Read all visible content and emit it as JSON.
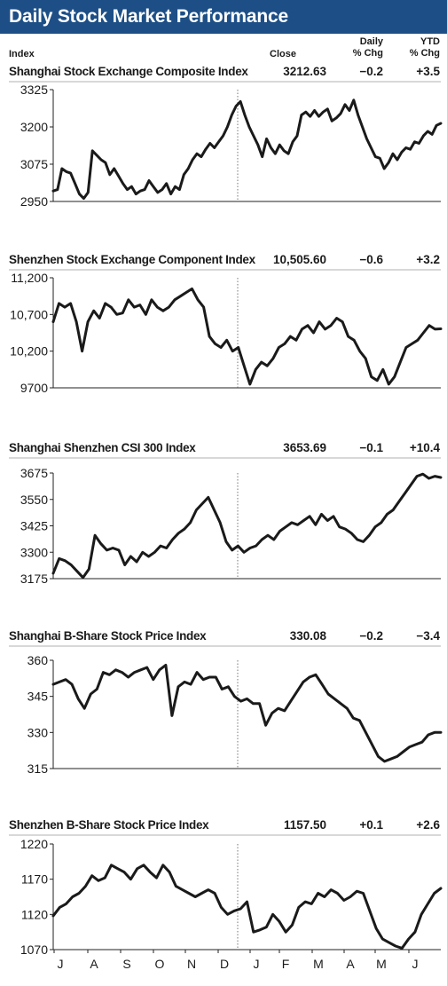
{
  "header": {
    "title": "Daily Stock Market Performance"
  },
  "columns": {
    "index": "Index",
    "close": "Close",
    "daily_line1": "Daily",
    "daily_line2": "% Chg",
    "ytd_line1": "YTD",
    "ytd_line2": "% Chg"
  },
  "months": [
    "J",
    "A",
    "S",
    "O",
    "N",
    "D",
    "J",
    "F",
    "M",
    "A",
    "M",
    "J"
  ],
  "colors": {
    "header": "#1d4f86",
    "line": "#1a1a1a",
    "axis": "#222222",
    "divider": "#555555"
  },
  "chart_data": [
    {
      "type": "line",
      "name": "Shanghai Stock Exchange Composite Index",
      "close": "3212.63",
      "daily": "−0.2",
      "ytd": "+3.5",
      "ylim": [
        2950,
        3325
      ],
      "yticks": [
        "3325",
        "3200",
        "3075",
        "2950"
      ],
      "values": [
        2985,
        2990,
        3060,
        3050,
        3045,
        3010,
        2975,
        2960,
        2980,
        3120,
        3105,
        3090,
        3080,
        3040,
        3060,
        3035,
        3010,
        2990,
        3000,
        2975,
        2985,
        2990,
        3020,
        3000,
        2980,
        2990,
        3010,
        2975,
        3000,
        2990,
        3040,
        3060,
        3090,
        3110,
        3100,
        3125,
        3145,
        3130,
        3150,
        3170,
        3200,
        3240,
        3270,
        3285,
        3240,
        3200,
        3170,
        3140,
        3100,
        3160,
        3130,
        3110,
        3140,
        3120,
        3110,
        3150,
        3170,
        3240,
        3250,
        3235,
        3255,
        3235,
        3250,
        3260,
        3220,
        3230,
        3245,
        3275,
        3255,
        3290,
        3240,
        3200,
        3160,
        3130,
        3100,
        3095,
        3060,
        3080,
        3110,
        3090,
        3115,
        3130,
        3125,
        3150,
        3145,
        3170,
        3185,
        3175,
        3205,
        3212
      ]
    },
    {
      "type": "line",
      "name": "Shenzhen Stock Exchange Component Index",
      "close": "10,505.60",
      "daily": "−0.6",
      "ytd": "+3.2",
      "ylim": [
        9700,
        11200
      ],
      "yticks": [
        "11,200",
        "10,700",
        "10,200",
        "9700"
      ],
      "values": [
        10600,
        10850,
        10800,
        10850,
        10600,
        10200,
        10600,
        10750,
        10650,
        10850,
        10800,
        10700,
        10720,
        10900,
        10800,
        10830,
        10700,
        10900,
        10800,
        10750,
        10800,
        10900,
        10950,
        11000,
        11050,
        10900,
        10800,
        10400,
        10300,
        10250,
        10350,
        10200,
        10250,
        10000,
        9750,
        9950,
        10050,
        10000,
        10100,
        10250,
        10300,
        10400,
        10350,
        10500,
        10550,
        10450,
        10600,
        10500,
        10550,
        10650,
        10600,
        10400,
        10350,
        10200,
        10100,
        9850,
        9800,
        9950,
        9750,
        9850,
        10050,
        10250,
        10300,
        10350,
        10450,
        10550,
        10500,
        10505
      ]
    },
    {
      "type": "line",
      "name": "Shanghai Shenzhen CSI 300 Index",
      "close": "3653.69",
      "daily": "−0.1",
      "ytd": "+10.4",
      "ylim": [
        3175,
        3675
      ],
      "yticks": [
        "3675",
        "3550",
        "3425",
        "3300",
        "3175"
      ],
      "values": [
        3200,
        3270,
        3260,
        3240,
        3210,
        3180,
        3220,
        3380,
        3340,
        3310,
        3320,
        3310,
        3240,
        3280,
        3255,
        3300,
        3280,
        3300,
        3330,
        3320,
        3360,
        3390,
        3410,
        3440,
        3500,
        3530,
        3560,
        3500,
        3440,
        3350,
        3310,
        3330,
        3300,
        3320,
        3330,
        3360,
        3380,
        3360,
        3400,
        3420,
        3440,
        3430,
        3450,
        3470,
        3430,
        3480,
        3450,
        3470,
        3420,
        3410,
        3390,
        3360,
        3350,
        3380,
        3420,
        3440,
        3480,
        3500,
        3540,
        3580,
        3620,
        3660,
        3670,
        3650,
        3660,
        3654
      ]
    },
    {
      "type": "line",
      "name": "Shanghai B-Share Stock Price Index",
      "close": "330.08",
      "daily": "−0.2",
      "ytd": "−3.4",
      "ylim": [
        315,
        360
      ],
      "yticks": [
        "360",
        "345",
        "330",
        "315"
      ],
      "values": [
        350,
        351,
        352,
        350,
        344,
        340,
        346,
        348,
        355,
        354,
        356,
        355,
        353,
        355,
        356,
        357,
        352,
        356,
        358,
        337,
        349,
        351,
        350,
        355,
        352,
        353,
        353,
        348,
        349,
        345,
        343,
        344,
        342,
        342,
        333,
        338,
        340,
        339,
        343,
        347,
        351,
        353,
        354,
        350,
        346,
        344,
        342,
        340,
        336,
        335,
        330,
        325,
        320,
        318,
        319,
        320,
        322,
        324,
        325,
        326,
        329,
        330,
        330
      ]
    },
    {
      "type": "line",
      "name": "Shenzhen B-Share Stock Price Index",
      "close": "1157.50",
      "daily": "+0.1",
      "ytd": "+2.6",
      "ylim": [
        1070,
        1220
      ],
      "yticks": [
        "1220",
        "1170",
        "1120",
        "1070"
      ],
      "values": [
        1118,
        1130,
        1135,
        1145,
        1150,
        1160,
        1175,
        1168,
        1172,
        1190,
        1185,
        1180,
        1170,
        1185,
        1190,
        1180,
        1172,
        1190,
        1180,
        1160,
        1155,
        1150,
        1145,
        1150,
        1155,
        1150,
        1130,
        1120,
        1125,
        1128,
        1138,
        1095,
        1098,
        1102,
        1120,
        1110,
        1095,
        1105,
        1130,
        1138,
        1135,
        1150,
        1145,
        1155,
        1150,
        1140,
        1145,
        1153,
        1150,
        1125,
        1100,
        1085,
        1080,
        1075,
        1072,
        1085,
        1095,
        1120,
        1135,
        1150,
        1157
      ]
    }
  ]
}
